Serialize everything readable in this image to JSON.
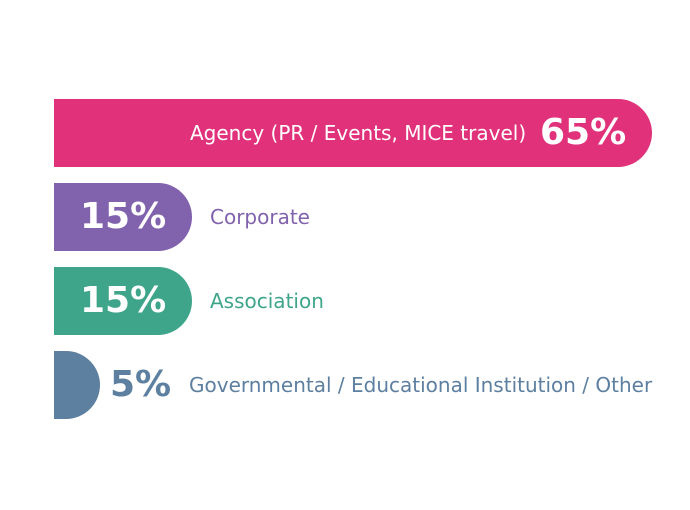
{
  "chart_data": {
    "type": "bar",
    "categories": [
      "Agency (PR / Events, MICE travel)",
      "Corporate",
      "Association",
      "Governmental / Educational Institution / Other"
    ],
    "values": [
      65,
      15,
      15,
      5
    ],
    "value_labels": [
      "65%",
      "15%",
      "15%",
      "5%"
    ],
    "colors": [
      "#e0317a",
      "#8062ad",
      "#3fa58a",
      "#5d7fa0"
    ]
  }
}
